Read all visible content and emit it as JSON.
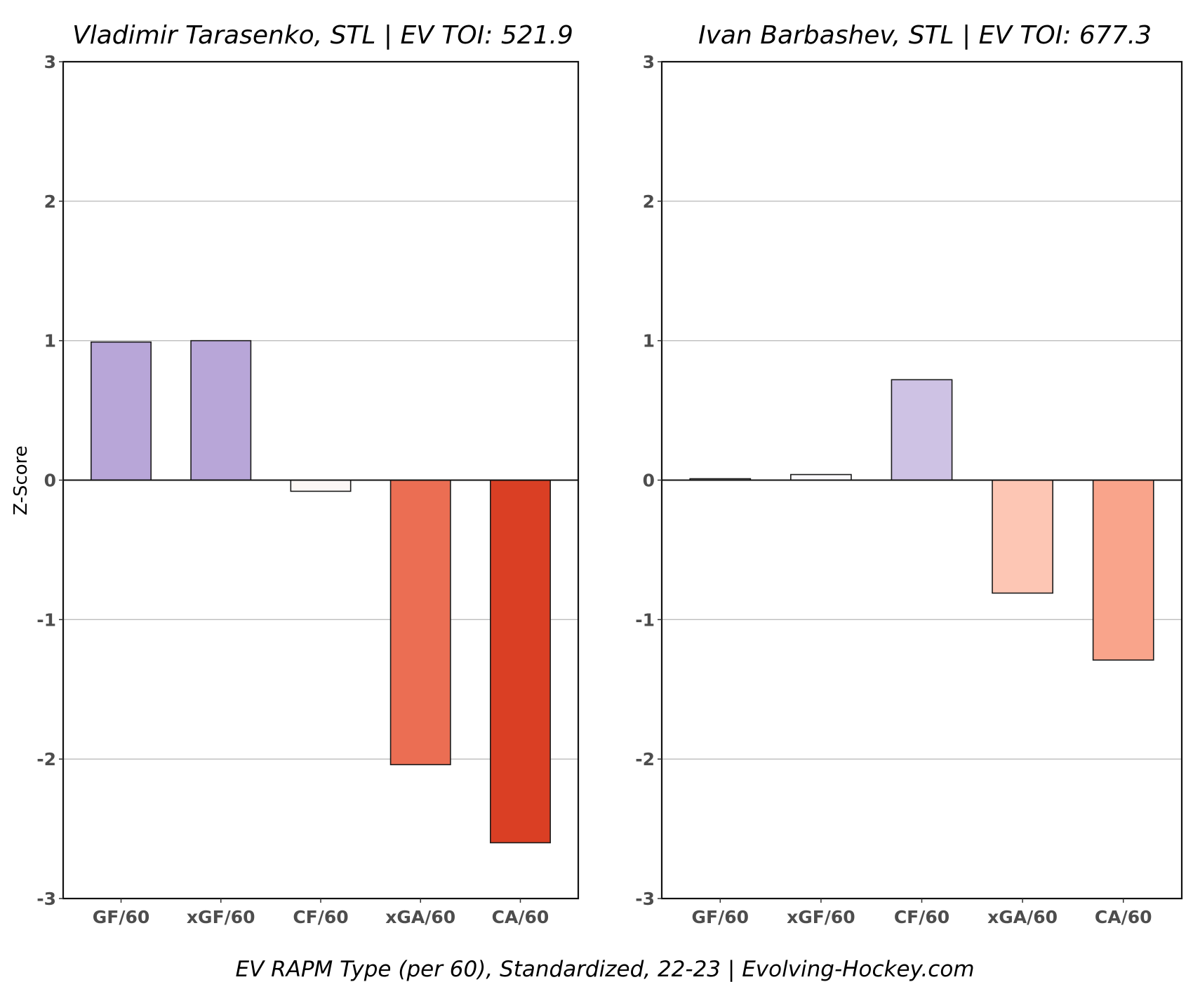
{
  "chart_data": [
    {
      "type": "bar",
      "title": "Vladimir Tarasenko, STL  |  EV TOI: 521.9",
      "player": "Vladimir Tarasenko",
      "team": "STL",
      "ev_toi": 521.9,
      "categories": [
        "GF/60",
        "xGF/60",
        "CF/60",
        "xGA/60",
        "CA/60"
      ],
      "values": [
        0.99,
        1.0,
        -0.08,
        -2.04,
        -2.6
      ],
      "colors": [
        "#b8a6d8",
        "#b8a6d8",
        "#fdf7f5",
        "#eb6e53",
        "#da3f24"
      ],
      "xlabel": "",
      "ylabel": "Z-Score",
      "ylim": [
        -3,
        3
      ],
      "yticks": [
        "-3",
        "-2",
        "-1",
        "0",
        "1",
        "2",
        "3"
      ],
      "grid": true
    },
    {
      "type": "bar",
      "title": "Ivan Barbashev, STL  |  EV TOI: 677.3",
      "player": "Ivan Barbashev",
      "team": "STL",
      "ev_toi": 677.3,
      "categories": [
        "GF/60",
        "xGF/60",
        "CF/60",
        "xGA/60",
        "CA/60"
      ],
      "values": [
        0.01,
        0.04,
        0.72,
        -0.81,
        -1.29
      ],
      "colors": [
        "#fcfbfd",
        "#fbfafd",
        "#cec2e4",
        "#fdc6b4",
        "#f9a48b"
      ],
      "xlabel": "",
      "ylabel": "",
      "ylim": [
        -3,
        3
      ],
      "yticks": [
        "-3",
        "-2",
        "-1",
        "0",
        "1",
        "2",
        "3"
      ],
      "grid": true
    }
  ],
  "caption": "EV RAPM Type (per 60), Standardized, 22-23    |    Evolving-Hockey.com"
}
